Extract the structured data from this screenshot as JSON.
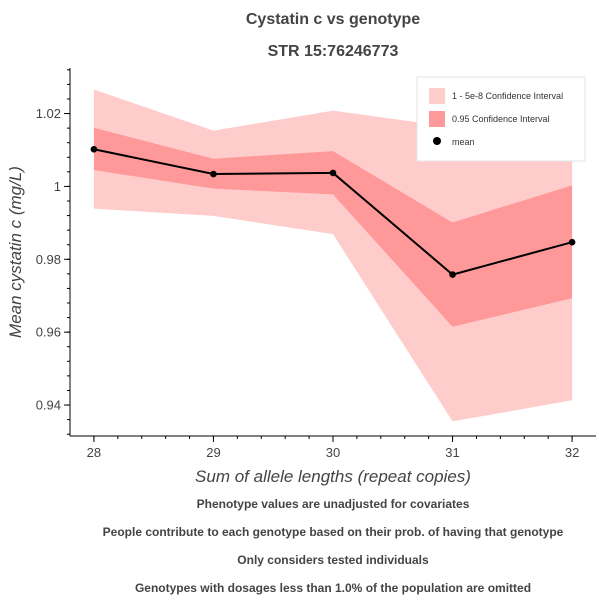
{
  "chart_data": {
    "type": "line",
    "title": "Cystatin c vs genotype",
    "subtitle": "STR 15:76246773",
    "xlabel": "Sum of allele lengths (repeat copies)",
    "ylabel": "Mean cystatin c (mg/L)",
    "x": [
      28,
      29,
      30,
      31,
      32
    ],
    "x_tick_labels": [
      "28",
      "29",
      "30",
      "31",
      "32"
    ],
    "xlim": [
      27.8,
      32.2
    ],
    "y_ticks": [
      0.94,
      0.96,
      0.98,
      1.0,
      1.02
    ],
    "y_tick_labels": [
      "0.94",
      "0.96",
      "0.98",
      "1",
      "1.02"
    ],
    "ylim": [
      0.9315,
      1.0325
    ],
    "series": [
      {
        "name": "mean",
        "values": [
          1.0102,
          1.0034,
          1.0037,
          0.9758,
          0.9847
        ],
        "color": "#000000"
      }
    ],
    "bands": [
      {
        "name": "1 - 5e-8 Confidence Interval",
        "lower": [
          0.9939,
          0.9919,
          0.9869,
          0.9355,
          0.9413
        ],
        "upper": [
          1.0266,
          1.0153,
          1.0208,
          1.0163,
          1.0178
        ],
        "color": "#ffcccc"
      },
      {
        "name": "0.95 Confidence Interval",
        "lower": [
          1.0045,
          0.9994,
          0.9978,
          0.9615,
          0.9693
        ],
        "upper": [
          1.0161,
          1.0076,
          1.0097,
          0.9901,
          1.0003
        ],
        "color": "#ff9999"
      }
    ],
    "legend": {
      "position": "top-right"
    },
    "grid": false
  },
  "notes": [
    "Phenotype values are unadjusted for covariates",
    "People contribute to each genotype based on their prob. of having that genotype",
    "Only considers tested individuals",
    "Genotypes with dosages less than 1.0% of the population are omitted"
  ]
}
